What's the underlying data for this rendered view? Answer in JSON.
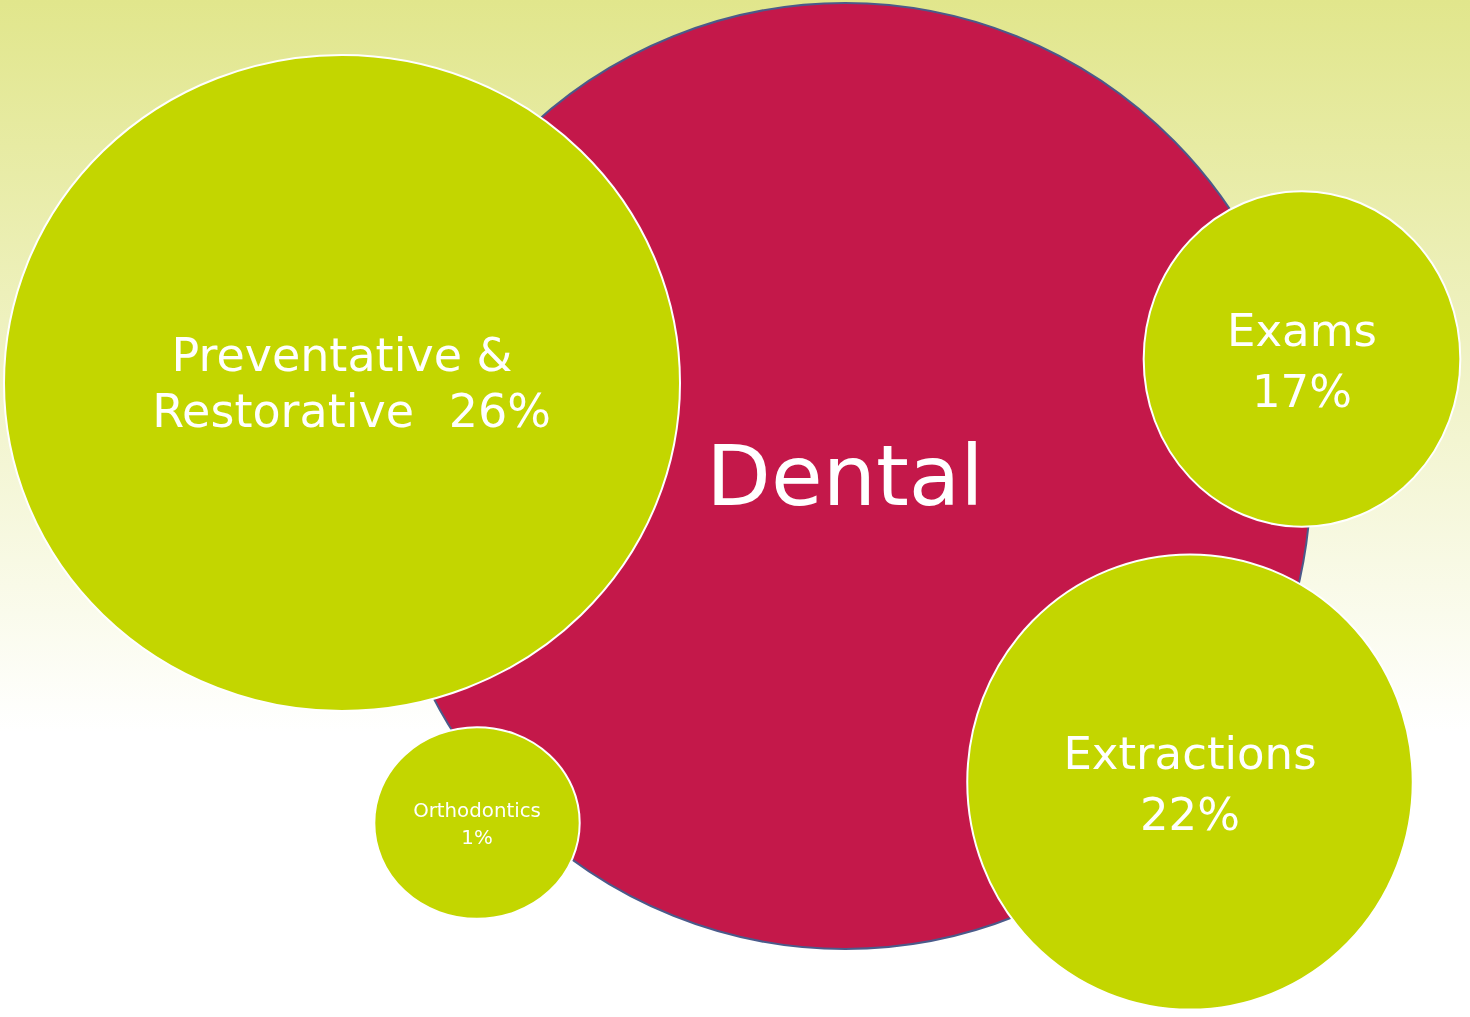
{
  "chart_data": {
    "type": "other",
    "categories": [
      "Dental",
      "Preventative & Restorative",
      "Exams",
      "Extractions",
      "Orthodontics"
    ],
    "values": [
      null,
      26,
      17,
      22,
      1
    ],
    "value_labels": [
      null,
      "26%",
      "17%",
      "22%",
      "1%"
    ],
    "colors": [
      "#c4184a",
      "#c3d600",
      "#c3d600",
      "#c3d600",
      "#c3d600"
    ]
  }
}
